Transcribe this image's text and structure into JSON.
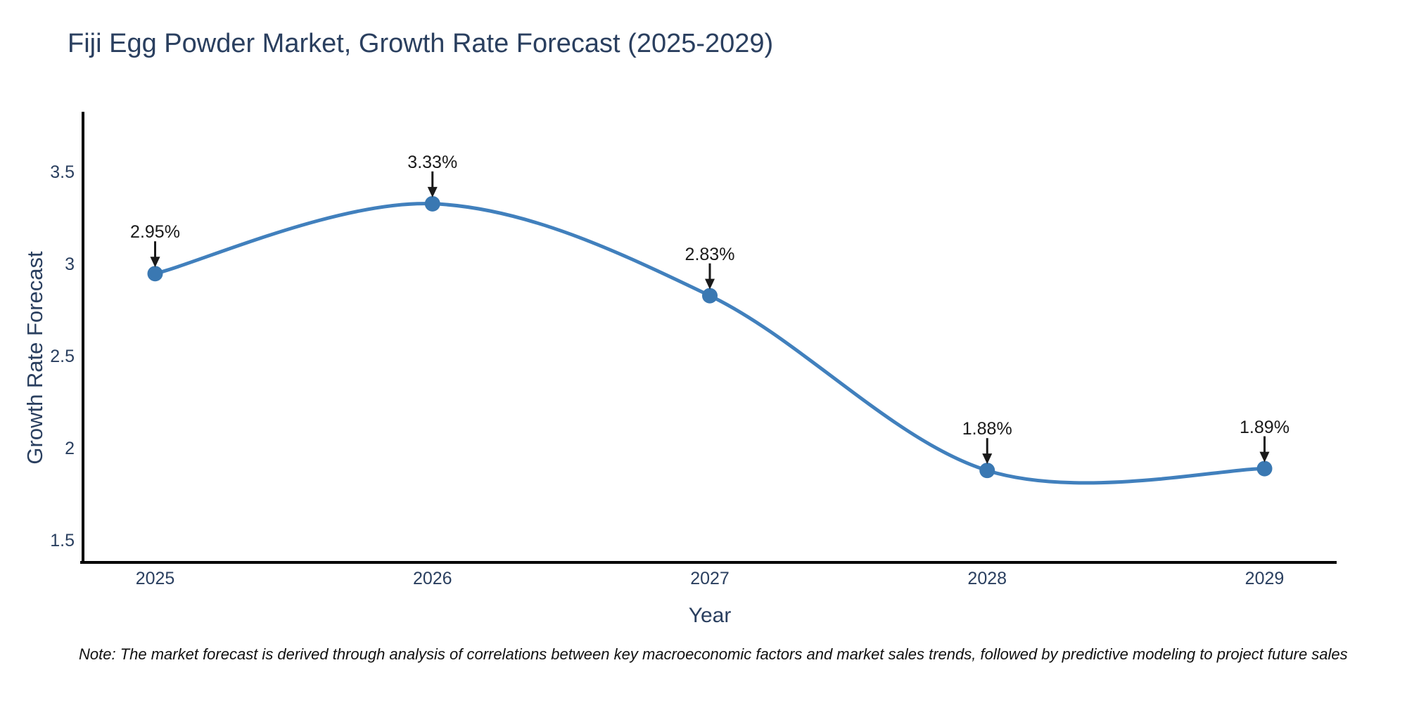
{
  "figure": {
    "background": "#ffffff"
  },
  "chart_data": {
    "type": "line",
    "title": "Fiji Egg Powder Market, Growth Rate Forecast (2025-2029)",
    "xlabel": "Year",
    "ylabel": "Growth Rate Forecast",
    "x": [
      2025,
      2026,
      2027,
      2028,
      2029
    ],
    "values": [
      2.95,
      3.33,
      2.83,
      1.88,
      1.89
    ],
    "point_labels": [
      "2.95%",
      "3.33%",
      "2.83%",
      "1.88%",
      "1.89%"
    ],
    "x_tick_labels": [
      "2025",
      "2026",
      "2027",
      "2028",
      "2029"
    ],
    "y_ticks": [
      1.5,
      2,
      2.5,
      3,
      3.5
    ],
    "y_tick_labels": [
      "1.5",
      "2",
      "2.5",
      "3",
      "3.5"
    ],
    "xlim": [
      2024.74,
      2029.26
    ],
    "ylim": [
      1.38,
      3.83
    ],
    "line_shape": "spline",
    "grid": false,
    "legend_position": "none",
    "line_color": "#4180bd",
    "marker_color": "#3a78b2",
    "axis_color": "#000000",
    "tick_color": "#2a3f5f",
    "annotation_color": "#1a1a1a",
    "annotations_have_arrows": true,
    "note": "Note: The market forecast is derived through analysis of correlations between key macroeconomic factors and market sales trends, followed by predictive modeling to project future sales"
  }
}
